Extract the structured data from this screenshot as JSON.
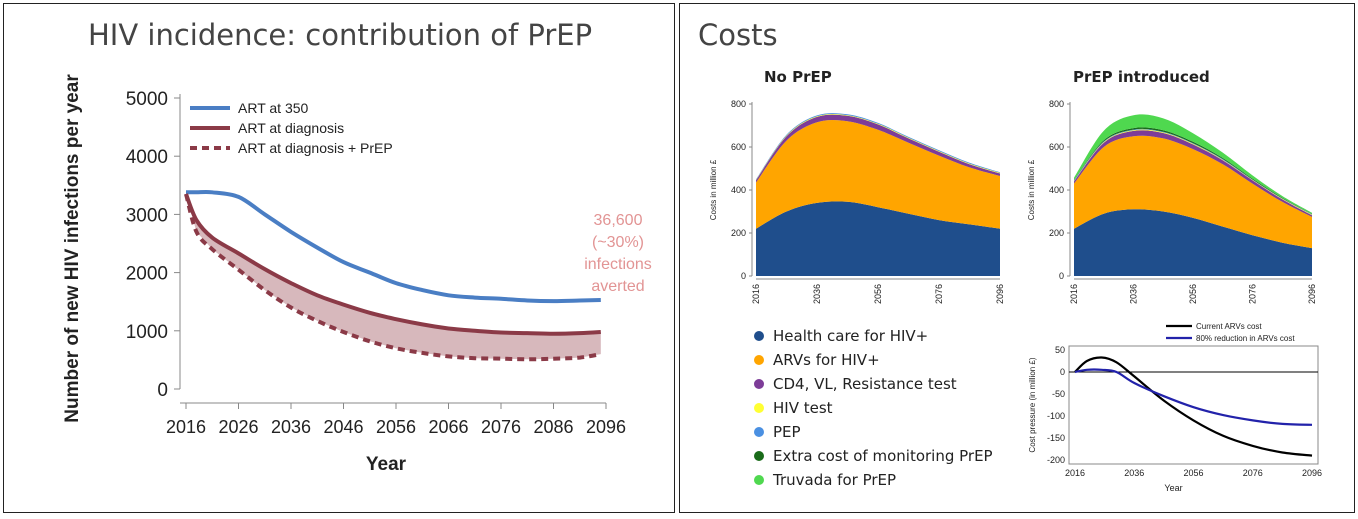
{
  "left": {
    "title": "HIV incidence: contribution of PrEP",
    "annotation": [
      "36,600",
      "(~30%)",
      "infections",
      "averted"
    ],
    "annotation_color": "#e29494"
  },
  "right": {
    "title": "Costs",
    "legend": [
      {
        "label": "Health care for HIV+",
        "color": "#1f4e8c"
      },
      {
        "label": "ARVs for HIV+",
        "color": "#ffa500"
      },
      {
        "label": "CD4, VL, Resistance test",
        "color": "#7d3c98"
      },
      {
        "label": "HIV test",
        "color": "#ffff33"
      },
      {
        "label": "PEP",
        "color": "#4a90e2"
      },
      {
        "label": "Extra cost of monitoring PrEP",
        "color": "#1a6b1a"
      },
      {
        "label": "Truvada for PrEP",
        "color": "#4fd84f"
      }
    ]
  },
  "chart_data": [
    {
      "id": "incidence",
      "type": "line",
      "title": "HIV incidence: contribution of PrEP",
      "xlabel": "Year",
      "ylabel": "Number of new HIV infections per year",
      "xlim": [
        2016,
        2096
      ],
      "ylim": [
        0,
        5000
      ],
      "xticks": [
        2016,
        2026,
        2036,
        2046,
        2056,
        2066,
        2076,
        2086,
        2096
      ],
      "yticks": [
        0,
        1000,
        2000,
        3000,
        4000,
        5000
      ],
      "x": [
        2016,
        2018,
        2021,
        2026,
        2031,
        2036,
        2041,
        2046,
        2051,
        2056,
        2061,
        2066,
        2071,
        2076,
        2081,
        2086,
        2091,
        2095
      ],
      "series": [
        {
          "name": "ART at 350",
          "color": "#4a7ec4",
          "dash": false,
          "values": [
            3380,
            3380,
            3380,
            3300,
            3000,
            2700,
            2430,
            2180,
            2000,
            1820,
            1700,
            1610,
            1570,
            1550,
            1520,
            1510,
            1520,
            1530
          ]
        },
        {
          "name": "ART at diagnosis",
          "color": "#8b3a47",
          "dash": false,
          "values": [
            3350,
            2900,
            2600,
            2330,
            2060,
            1820,
            1610,
            1450,
            1310,
            1200,
            1110,
            1040,
            1000,
            970,
            960,
            950,
            960,
            980
          ]
        },
        {
          "name": "ART at diagnosis + PrEP",
          "color": "#8b3a47",
          "dash": true,
          "values": [
            3350,
            2700,
            2400,
            2050,
            1700,
            1400,
            1170,
            980,
            820,
            700,
            620,
            560,
            530,
            520,
            510,
            520,
            540,
            600
          ]
        }
      ]
    },
    {
      "id": "costs-no-prep",
      "type": "area",
      "title": "No PrEP",
      "ylabel": "Costs in million £",
      "xticks": [
        2016,
        2036,
        2056,
        2076,
        2096
      ],
      "yticks": [
        0,
        200,
        400,
        600,
        800
      ],
      "ylim": [
        0,
        800
      ],
      "x": [
        2016,
        2026,
        2036,
        2046,
        2056,
        2066,
        2076,
        2086,
        2096
      ],
      "series": [
        {
          "name": "Health care for HIV+",
          "values": [
            220,
            300,
            340,
            345,
            320,
            290,
            260,
            240,
            220
          ]
        },
        {
          "name": "ARVs for HIV+",
          "values": [
            215,
            330,
            375,
            375,
            360,
            330,
            300,
            265,
            245
          ]
        },
        {
          "name": "CD4, VL, Resistance test",
          "values": [
            10,
            20,
            25,
            25,
            25,
            20,
            18,
            15,
            12
          ]
        },
        {
          "name": "HIV test",
          "values": [
            2,
            3,
            3,
            3,
            3,
            3,
            3,
            3,
            3
          ]
        },
        {
          "name": "PEP",
          "values": [
            3,
            4,
            4,
            4,
            4,
            4,
            4,
            4,
            3
          ]
        }
      ]
    },
    {
      "id": "costs-prep",
      "type": "area",
      "title": "PrEP introduced",
      "ylabel": "Costs in million £",
      "xticks": [
        2016,
        2036,
        2056,
        2076,
        2096
      ],
      "yticks": [
        0,
        200,
        400,
        600,
        800
      ],
      "ylim": [
        0,
        800
      ],
      "x": [
        2016,
        2026,
        2036,
        2046,
        2056,
        2066,
        2076,
        2086,
        2096
      ],
      "series": [
        {
          "name": "Health care for HIV+",
          "values": [
            220,
            290,
            310,
            300,
            270,
            230,
            190,
            155,
            130
          ]
        },
        {
          "name": "ARVs for HIV+",
          "values": [
            210,
            310,
            340,
            340,
            320,
            290,
            240,
            190,
            145
          ]
        },
        {
          "name": "CD4, VL, Resistance test",
          "values": [
            10,
            20,
            25,
            25,
            22,
            18,
            15,
            12,
            8
          ]
        },
        {
          "name": "HIV test",
          "values": [
            2,
            3,
            3,
            3,
            3,
            3,
            2,
            2,
            2
          ]
        },
        {
          "name": "PEP",
          "values": [
            3,
            3,
            3,
            3,
            3,
            3,
            2,
            2,
            2
          ]
        },
        {
          "name": "Extra cost of monitoring PrEP",
          "values": [
            2,
            5,
            7,
            7,
            6,
            5,
            4,
            3,
            2
          ]
        },
        {
          "name": "Truvada for PrEP",
          "values": [
            10,
            45,
            60,
            55,
            40,
            25,
            15,
            8,
            5
          ]
        }
      ]
    },
    {
      "id": "cost-pressure",
      "type": "line",
      "xlabel": "Year",
      "ylabel": "Cost pressure (in million £)",
      "xticks": [
        2016,
        2036,
        2056,
        2076,
        2096
      ],
      "yticks": [
        -200,
        -150,
        -100,
        -50,
        0,
        50
      ],
      "xlim": [
        2016,
        2096
      ],
      "ylim": [
        -200,
        50
      ],
      "x": [
        2016,
        2020,
        2025,
        2030,
        2036,
        2046,
        2056,
        2066,
        2076,
        2086,
        2096
      ],
      "series": [
        {
          "name": "Current ARVs cost",
          "color": "#000000",
          "values": [
            0,
            25,
            33,
            22,
            -10,
            -65,
            -110,
            -145,
            -168,
            -183,
            -190
          ]
        },
        {
          "name": "80% reduction in ARVs cost",
          "color": "#2222aa",
          "values": [
            0,
            5,
            5,
            0,
            -25,
            -55,
            -80,
            -98,
            -110,
            -118,
            -120
          ]
        }
      ]
    }
  ]
}
